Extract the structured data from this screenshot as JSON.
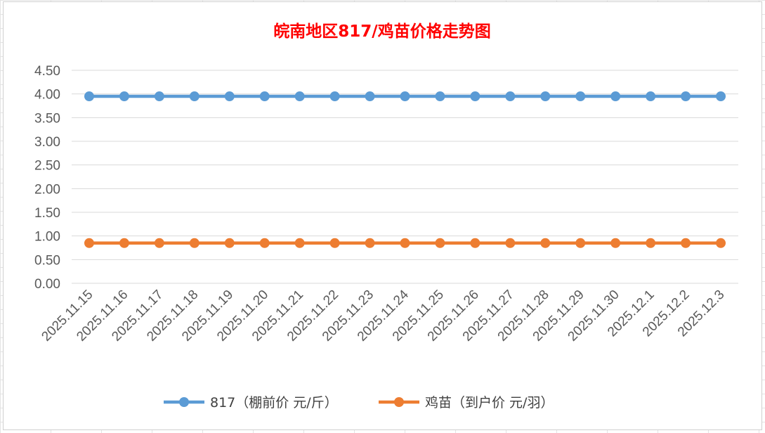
{
  "chart_data": {
    "type": "line",
    "title": "皖南地区817/鸡苗价格走势图",
    "title_color": "#ff0000",
    "x": [
      "2025.11.15",
      "2025.11.16",
      "2025.11.17",
      "2025.11.18",
      "2025.11.19",
      "2025.11.20",
      "2025.11.21",
      "2025.11.22",
      "2025.11.23",
      "2025.11.24",
      "2025.11.25",
      "2025.11.26",
      "2025.11.27",
      "2025.11.28",
      "2025.11.29",
      "2025.11.30",
      "2025.12.1",
      "2025.12.2",
      "2025.12.3"
    ],
    "series": [
      {
        "name": "817（棚前价 元/斤）",
        "color": "#5b9bd5",
        "values": [
          3.95,
          3.95,
          3.95,
          3.95,
          3.95,
          3.95,
          3.95,
          3.95,
          3.95,
          3.95,
          3.95,
          3.95,
          3.95,
          3.95,
          3.95,
          3.95,
          3.95,
          3.95,
          3.95
        ]
      },
      {
        "name": "鸡苗（到户价 元/羽）",
        "color": "#ed7d31",
        "values": [
          0.85,
          0.85,
          0.85,
          0.85,
          0.85,
          0.85,
          0.85,
          0.85,
          0.85,
          0.85,
          0.85,
          0.85,
          0.85,
          0.85,
          0.85,
          0.85,
          0.85,
          0.85,
          0.85
        ]
      }
    ],
    "yticks": [
      "0.00",
      "0.50",
      "1.00",
      "1.50",
      "2.00",
      "2.50",
      "3.00",
      "3.50",
      "4.00",
      "4.50"
    ],
    "ylim": [
      0,
      4.5
    ],
    "xlabel": "",
    "ylabel": "",
    "grid": true,
    "legend_position": "bottom"
  }
}
